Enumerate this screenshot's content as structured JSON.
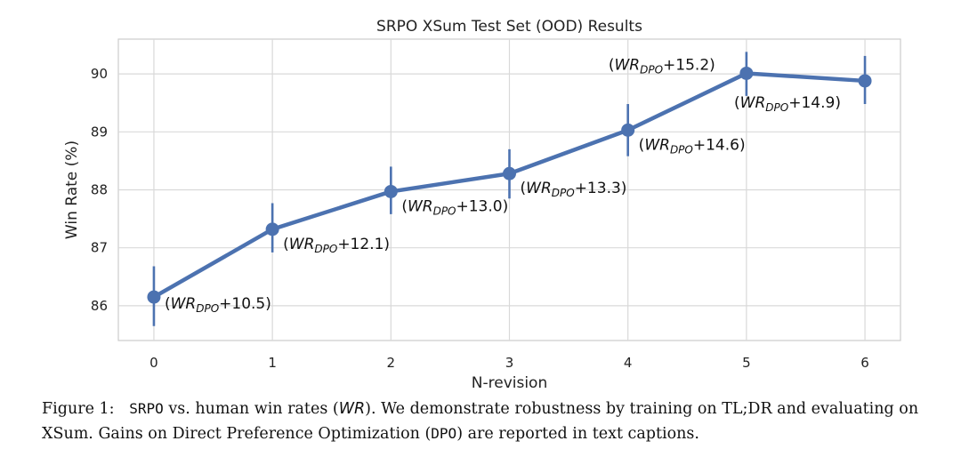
{
  "chart_data": {
    "type": "line",
    "title": "SRPO XSum Test Set (OOD) Results",
    "xlabel": "N-revision",
    "ylabel": "Win Rate (%)",
    "x": [
      0,
      1,
      2,
      3,
      4,
      5,
      6
    ],
    "xticks": [
      "0",
      "1",
      "2",
      "3",
      "4",
      "5",
      "6"
    ],
    "yticks": [
      "86",
      "87",
      "88",
      "89",
      "90"
    ],
    "xlim": [
      -0.3,
      6.3
    ],
    "ylim": [
      85.4,
      90.6
    ],
    "grid": true,
    "series": [
      {
        "values": [
          86.15,
          87.32,
          87.97,
          88.28,
          89.03,
          90.01,
          89.88
        ],
        "err_low": [
          85.65,
          86.92,
          87.58,
          87.85,
          88.58,
          89.62,
          89.48
        ],
        "err_high": [
          86.68,
          87.77,
          88.4,
          88.7,
          89.48,
          90.38,
          90.31
        ],
        "color": "#4c72b0"
      }
    ],
    "annotations": [
      {
        "prefix": "(",
        "wr": "WR",
        "sub": "DPO",
        "suffix": "+10.5)"
      },
      {
        "prefix": "(",
        "wr": "WR",
        "sub": "DPO",
        "suffix": "+12.1)"
      },
      {
        "prefix": "(",
        "wr": "WR",
        "sub": "DPO",
        "suffix": "+13.0)"
      },
      {
        "prefix": "(",
        "wr": "WR",
        "sub": "DPO",
        "suffix": "+13.3)"
      },
      {
        "prefix": "(",
        "wr": "WR",
        "sub": "DPO",
        "suffix": "+14.6)"
      },
      {
        "prefix": "(",
        "wr": "WR",
        "sub": "DPO",
        "suffix": "+15.2)"
      },
      {
        "prefix": "(",
        "wr": "WR",
        "sub": "DPO",
        "suffix": "+14.9)"
      }
    ]
  },
  "caption": {
    "label": "Figure 1:",
    "srpo": "SRPO",
    "t1": " vs. human win rates (",
    "wr": "WR",
    "t2": "). We demonstrate robustness by training on TL;DR and evaluating on XSum. Gains on Direct Preference Optimization (",
    "dpo": "DPO",
    "t3": ")  are reported in text captions."
  }
}
